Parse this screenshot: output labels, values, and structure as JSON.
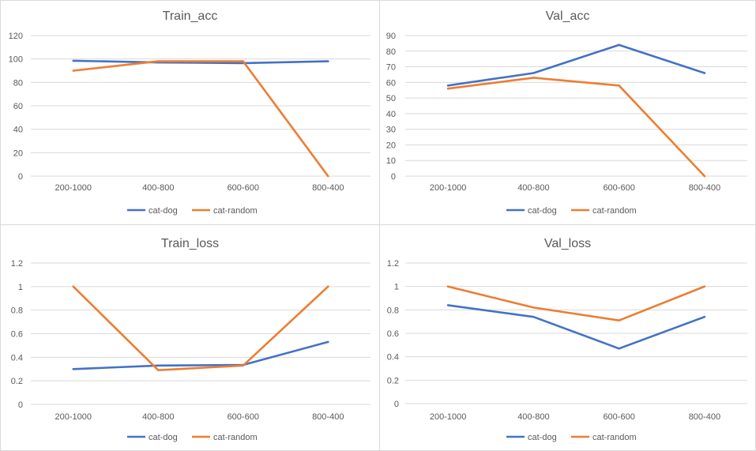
{
  "chart_data": [
    {
      "type": "line",
      "title": "Train_acc",
      "categories": [
        "200-1000",
        "400-800",
        "600-600",
        "800-400"
      ],
      "ylim": [
        0,
        120
      ],
      "yticks": [
        "0",
        "20",
        "40",
        "60",
        "80",
        "100",
        "120"
      ],
      "grid": true,
      "legend": "bottom",
      "series": [
        {
          "name": "cat-dog",
          "color": "#4472C4",
          "values": [
            98.5,
            97,
            96.5,
            98
          ]
        },
        {
          "name": "cat-random",
          "color": "#ED7D31",
          "values": [
            90,
            98,
            98,
            0
          ]
        }
      ]
    },
    {
      "type": "line",
      "title": "Val_acc",
      "categories": [
        "200-1000",
        "400-800",
        "600-600",
        "800-400"
      ],
      "ylim": [
        0,
        90
      ],
      "yticks": [
        "0",
        "10",
        "20",
        "30",
        "40",
        "50",
        "60",
        "70",
        "80",
        "90"
      ],
      "grid": true,
      "legend": "bottom",
      "series": [
        {
          "name": "cat-dog",
          "color": "#4472C4",
          "values": [
            58,
            66,
            84,
            66
          ]
        },
        {
          "name": "cat-random",
          "color": "#ED7D31",
          "values": [
            56,
            63,
            58,
            0
          ]
        }
      ]
    },
    {
      "type": "line",
      "title": "Train_loss",
      "categories": [
        "200-1000",
        "400-800",
        "600-600",
        "800-400"
      ],
      "ylim": [
        0,
        1.2
      ],
      "yticks": [
        "0",
        "0.2",
        "0.4",
        "0.6",
        "0.8",
        "1",
        "1.2"
      ],
      "grid": true,
      "legend": "bottom",
      "series": [
        {
          "name": "cat-dog",
          "color": "#4472C4",
          "values": [
            0.3,
            0.33,
            0.335,
            0.53
          ]
        },
        {
          "name": "cat-random",
          "color": "#ED7D31",
          "values": [
            1.0,
            0.29,
            0.33,
            1.0
          ]
        }
      ]
    },
    {
      "type": "line",
      "title": "Val_loss",
      "categories": [
        "200-1000",
        "400-800",
        "600-600",
        "800-400"
      ],
      "ylim": [
        0,
        1.2
      ],
      "yticks": [
        "0",
        "0.2",
        "0.4",
        "0.6",
        "0.8",
        "1",
        "1.2"
      ],
      "grid": true,
      "legend": "bottom",
      "series": [
        {
          "name": "cat-dog",
          "color": "#4472C4",
          "values": [
            0.84,
            0.74,
            0.47,
            0.74
          ]
        },
        {
          "name": "cat-random",
          "color": "#ED7D31",
          "values": [
            1.0,
            0.82,
            0.71,
            1.0
          ]
        }
      ]
    }
  ]
}
